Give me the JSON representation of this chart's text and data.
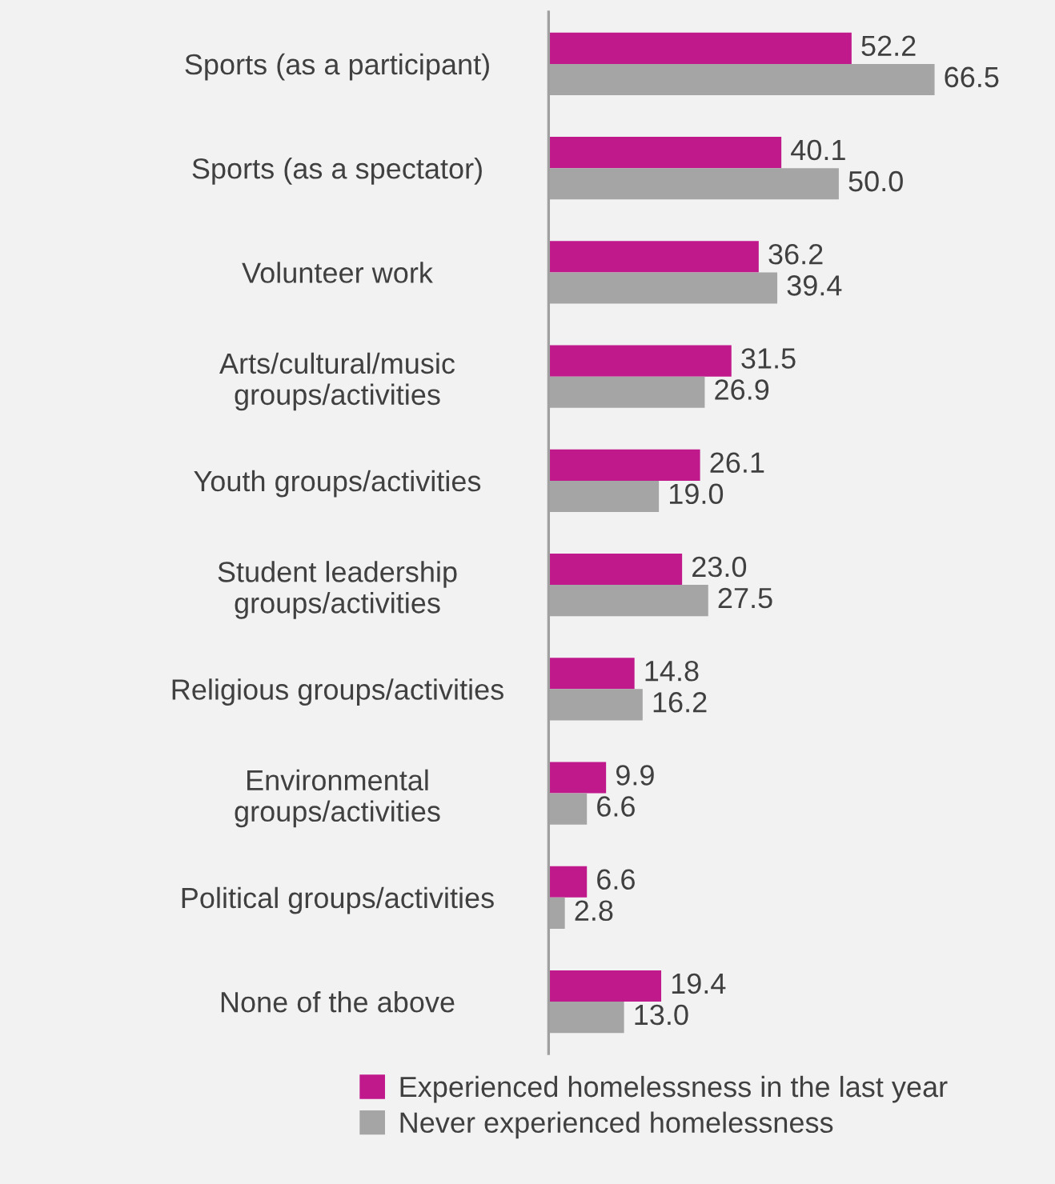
{
  "chart_data": {
    "type": "bar",
    "orientation": "horizontal",
    "categories": [
      "Sports (as a participant)",
      "Sports (as a spectator)",
      "Volunteer work",
      "Arts/cultural/music\ngroups/activities",
      "Youth groups/activities",
      "Student leadership\ngroups/activities",
      "Religious groups/activities",
      "Environmental\ngroups/activities",
      "Political groups/activities",
      "None of the above"
    ],
    "series": [
      {
        "name": "Experienced homelessness in the last year",
        "color": "#c0198c",
        "values": [
          52.2,
          40.1,
          36.2,
          31.5,
          26.1,
          23.0,
          14.8,
          9.9,
          6.6,
          19.4
        ],
        "value_labels": [
          "52.2",
          "40.1",
          "36.2",
          "31.5",
          "26.1",
          "23.0",
          "14.8",
          "9.9",
          "6.6",
          "19.4"
        ]
      },
      {
        "name": "Never experienced homelessness",
        "color": "#a5a5a5",
        "values": [
          66.5,
          50.0,
          39.4,
          26.9,
          19.0,
          27.5,
          16.2,
          6.6,
          2.8,
          13.0
        ],
        "value_labels": [
          "66.5",
          "50.0",
          "39.4",
          "26.9",
          "19.0",
          "27.5",
          "16.2",
          "6.6",
          "2.8",
          "13.0"
        ]
      }
    ],
    "legend": "bottom",
    "grid": false
  }
}
